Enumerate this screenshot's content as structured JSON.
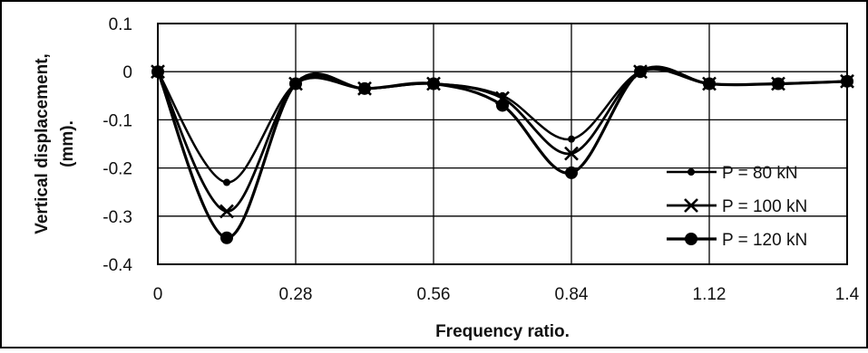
{
  "chart_data": {
    "type": "line",
    "xlabel": "Frequency ratio.",
    "ylabel": "Vertical displacement, (mm).",
    "xlim": [
      0,
      1.4
    ],
    "ylim": [
      -0.4,
      0.1
    ],
    "x_ticks": [
      "0",
      "0.28",
      "0.56",
      "0.84",
      "1.12",
      "1.4"
    ],
    "x_tick_values": [
      0,
      0.28,
      0.56,
      0.84,
      1.12,
      1.4
    ],
    "y_ticks": [
      "0.1",
      "0",
      "-0.1",
      "-0.2",
      "-0.3",
      "-0.4"
    ],
    "y_tick_values": [
      0.1,
      0,
      -0.1,
      -0.2,
      -0.3,
      -0.4
    ],
    "grid": true,
    "legend_position": "right",
    "x": [
      0,
      0.14,
      0.28,
      0.42,
      0.56,
      0.7,
      0.84,
      0.98,
      1.12,
      1.26,
      1.4
    ],
    "series": [
      {
        "name": "P = 80 kN",
        "marker": "dot",
        "values": [
          0,
          -0.23,
          -0.025,
          -0.035,
          -0.025,
          -0.05,
          -0.14,
          0,
          -0.025,
          -0.025,
          -0.02
        ]
      },
      {
        "name": "P = 100 kN",
        "marker": "x",
        "values": [
          0,
          -0.29,
          -0.025,
          -0.035,
          -0.025,
          -0.055,
          -0.17,
          0,
          -0.025,
          -0.025,
          -0.02
        ]
      },
      {
        "name": "P = 120 kN",
        "marker": "circle",
        "values": [
          0,
          -0.345,
          -0.025,
          -0.035,
          -0.025,
          -0.07,
          -0.21,
          0,
          -0.025,
          -0.025,
          -0.02
        ]
      }
    ]
  }
}
